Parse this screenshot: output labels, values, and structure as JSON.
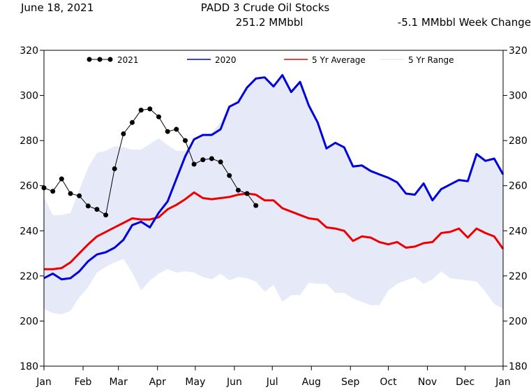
{
  "header": {
    "date": "June 18, 2021",
    "title": "PADD 3 Crude Oil Stocks",
    "subtitle": "251.2 MMbbl",
    "week_change": "-5.1 MMbbl Week Change"
  },
  "colors": {
    "series_2021": "#000000",
    "series_2020": "#0000dd",
    "avg": "#ee0000",
    "range": "#e6e9f7"
  },
  "chart_data": {
    "type": "line",
    "title": "PADD 3 Crude Oil Stocks",
    "xlabel": "",
    "ylabel": "",
    "ylim": [
      180,
      320
    ],
    "yticks": [
      180,
      200,
      220,
      240,
      260,
      280,
      300,
      320
    ],
    "xlim": [
      0,
      52
    ],
    "x_tick_labels": [
      "Jan",
      "Feb",
      "Mar",
      "Apr",
      "May",
      "Jun",
      "Jul",
      "Aug",
      "Sep",
      "Oct",
      "Nov",
      "Dec",
      "Jan"
    ],
    "x_tick_positions": [
      0,
      4.43,
      8.43,
      12.86,
      17.14,
      21.57,
      25.86,
      30.29,
      34.71,
      39.0,
      43.43,
      47.71,
      52.14
    ],
    "grid": false,
    "legend_position": "top",
    "legend": [
      {
        "label": "2021",
        "series": "y2021"
      },
      {
        "label": "2020",
        "series": "y2020"
      },
      {
        "label": "5 Yr Average",
        "series": "avg"
      },
      {
        "label": "5 Yr Range",
        "series": "range"
      }
    ],
    "series": [
      {
        "id": "y2021",
        "name": "2021",
        "x": [
          0,
          1,
          2,
          3,
          4,
          5,
          6,
          7,
          8,
          9,
          10,
          11,
          12,
          13,
          14,
          15,
          16,
          17,
          18,
          19,
          20,
          21,
          22,
          23,
          24
        ],
        "values": [
          259,
          257.5,
          263,
          256.5,
          255.5,
          251,
          249.5,
          247,
          267.5,
          283,
          288,
          293.5,
          294,
          290.5,
          284,
          285,
          280,
          269.5,
          271.5,
          272,
          270.5,
          264.5,
          258,
          256.5,
          251.2
        ]
      },
      {
        "id": "y2020",
        "name": "2020",
        "x": [
          0,
          1,
          2,
          3,
          4,
          5,
          6,
          7,
          8,
          9,
          10,
          11,
          12,
          13,
          14,
          15,
          16,
          17,
          18,
          19,
          20,
          21,
          22,
          23,
          24,
          25,
          26,
          27,
          28,
          29,
          30,
          31,
          32,
          33,
          34,
          35,
          36,
          37,
          38,
          39,
          40,
          41,
          42,
          43,
          44,
          45,
          46,
          47,
          48,
          49,
          50,
          51,
          52
        ],
        "values": [
          219,
          221,
          218.5,
          219,
          222,
          226.5,
          229.5,
          230.5,
          232.5,
          236,
          242.5,
          244,
          241.5,
          248,
          253,
          263,
          273,
          280.5,
          282.5,
          282.5,
          285,
          295,
          297,
          303.5,
          307.5,
          308,
          304,
          309,
          301.5,
          306,
          295.5,
          288,
          276.5,
          279,
          277,
          268.5,
          269,
          266.5,
          265,
          263.5,
          261.5,
          256.5,
          256,
          261,
          253.5,
          258.5,
          260.5,
          262.5,
          262,
          274,
          271,
          272,
          265
        ]
      },
      {
        "id": "avg",
        "name": "5 Yr Average",
        "x": [
          0,
          1,
          2,
          3,
          4,
          5,
          6,
          7,
          8,
          9,
          10,
          11,
          12,
          13,
          14,
          15,
          16,
          17,
          18,
          19,
          20,
          21,
          22,
          23,
          24,
          25,
          26,
          27,
          28,
          29,
          30,
          31,
          32,
          33,
          34,
          35,
          36,
          37,
          38,
          39,
          40,
          41,
          42,
          43,
          44,
          45,
          46,
          47,
          48,
          49,
          50,
          51,
          52
        ],
        "values": [
          223,
          223,
          223.5,
          226,
          230,
          234,
          237.5,
          239.5,
          241.5,
          243.5,
          245.5,
          245,
          245,
          246,
          249.5,
          251.5,
          254,
          257,
          254.5,
          254,
          254.5,
          255,
          256,
          256.5,
          256,
          253.5,
          253.5,
          250,
          248.5,
          247,
          245.5,
          245,
          241.5,
          241,
          240,
          235.5,
          237.5,
          237,
          235,
          234,
          235,
          232.5,
          233,
          234.5,
          235,
          239,
          239.5,
          241,
          237,
          241,
          239,
          237.5,
          232
        ]
      },
      {
        "id": "range",
        "name": "5 Yr Range",
        "x": [
          0,
          1,
          2,
          3,
          4,
          5,
          6,
          7,
          8,
          9,
          10,
          11,
          12,
          13,
          14,
          15,
          16,
          17,
          18,
          19,
          20,
          21,
          22,
          23,
          24,
          25,
          26,
          27,
          28,
          29,
          30,
          31,
          32,
          33,
          34,
          35,
          36,
          37,
          38,
          39,
          40,
          41,
          42,
          43,
          44,
          45,
          46,
          47,
          48,
          49,
          50,
          51,
          52
        ],
        "max": [
          255,
          247,
          247,
          248,
          258,
          268,
          274.5,
          275.5,
          277.5,
          277,
          276,
          276,
          278.5,
          281,
          278,
          275.5,
          275.5,
          278.5,
          282,
          283.5,
          288,
          295.5,
          297.5,
          304,
          308,
          308,
          304,
          309,
          301.5,
          306,
          295.5,
          288,
          276.5,
          279,
          277,
          268.5,
          269,
          266.5,
          265,
          263.5,
          261.5,
          256.5,
          256,
          261,
          253.5,
          258.5,
          260.5,
          262.5,
          262,
          274,
          271,
          272,
          265
        ],
        "min": [
          205.5,
          203.5,
          203,
          204.5,
          210.5,
          215,
          221.5,
          224,
          226,
          227.5,
          221.5,
          213.5,
          218,
          221,
          223,
          221.5,
          222,
          221.5,
          219.5,
          218.5,
          221,
          218,
          219.5,
          219,
          217.5,
          213,
          216,
          208.5,
          211.5,
          211.5,
          217,
          216.5,
          216.5,
          212.5,
          212.5,
          210,
          208.5,
          207,
          207,
          213.5,
          216.5,
          218,
          219.5,
          216.5,
          218.5,
          222,
          219,
          218.5,
          218,
          217.5,
          213,
          207.5,
          205.5
        ]
      }
    ]
  }
}
